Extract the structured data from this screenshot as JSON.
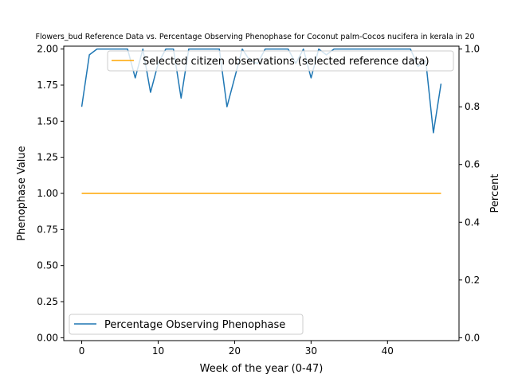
{
  "chart_data": {
    "type": "line",
    "title": "Flowers_bud Reference Data vs. Percentage Observing Phenophase for Coconut palm-Cocos nucifera in kerala in 20",
    "xlabel": "Week of the year (0-47)",
    "ylabel_left": "Phenophase Value",
    "ylabel_right": "Percent",
    "xlim": [
      -2.35,
      49.35
    ],
    "ylim_left": [
      -0.02,
      2.02
    ],
    "ylim_right": [
      -0.01,
      1.01
    ],
    "x_ticks": [
      0,
      10,
      20,
      30,
      40
    ],
    "y_left_ticks": [
      0.0,
      0.25,
      0.5,
      0.75,
      1.0,
      1.25,
      1.5,
      1.75,
      2.0
    ],
    "y_left_tick_labels": [
      "0.00",
      "0.25",
      "0.50",
      "0.75",
      "1.00",
      "1.25",
      "1.50",
      "1.75",
      "2.00"
    ],
    "y_right_ticks": [
      0.0,
      0.2,
      0.4,
      0.6,
      0.8,
      1.0
    ],
    "y_right_tick_labels": [
      "0.0",
      "0.2",
      "0.4",
      "0.6",
      "0.8",
      "1.0"
    ],
    "series": [
      {
        "name": "Selected citizen observations (selected reference data)",
        "axis": "left",
        "color": "#ffa500",
        "x": [
          0,
          47
        ],
        "values": [
          1.0,
          1.0
        ]
      },
      {
        "name": "Percentage Observing Phenophase",
        "axis": "right",
        "color": "#1f77b4",
        "x": [
          0,
          1,
          2,
          3,
          4,
          5,
          6,
          7,
          8,
          9,
          10,
          11,
          12,
          13,
          14,
          15,
          16,
          17,
          18,
          19,
          20,
          21,
          22,
          23,
          24,
          25,
          26,
          27,
          28,
          29,
          30,
          31,
          32,
          33,
          34,
          35,
          36,
          37,
          38,
          39,
          40,
          41,
          42,
          43,
          44,
          45,
          46,
          47
        ],
        "values": [
          0.8,
          0.98,
          1.0,
          1.0,
          1.0,
          1.0,
          1.0,
          0.9,
          1.0,
          0.85,
          0.95,
          1.0,
          1.0,
          0.83,
          1.0,
          1.0,
          1.0,
          1.0,
          1.0,
          0.8,
          0.9,
          1.0,
          0.96,
          0.95,
          1.0,
          1.0,
          1.0,
          1.0,
          0.95,
          1.0,
          0.9,
          1.0,
          0.98,
          1.0,
          1.0,
          1.0,
          1.0,
          1.0,
          1.0,
          1.0,
          1.0,
          1.0,
          1.0,
          1.0,
          0.94,
          0.96,
          0.71,
          0.88
        ]
      }
    ],
    "legend_upper": {
      "placement": "upper-right",
      "label": "Selected citizen observations (selected reference data)"
    },
    "legend_lower": {
      "placement": "lower-left",
      "label": "Percentage Observing Phenophase"
    },
    "grid": false
  }
}
